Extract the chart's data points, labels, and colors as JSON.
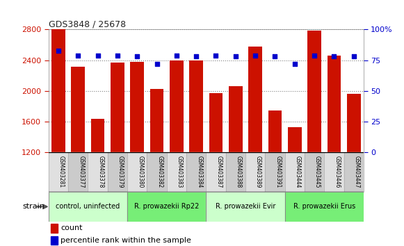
{
  "title": "GDS3848 / 25678",
  "samples": [
    "GSM403281",
    "GSM403377",
    "GSM403378",
    "GSM403379",
    "GSM403380",
    "GSM403382",
    "GSM403383",
    "GSM403384",
    "GSM403387",
    "GSM403388",
    "GSM403389",
    "GSM403391",
    "GSM403444",
    "GSM403445",
    "GSM403446",
    "GSM403447"
  ],
  "counts": [
    2800,
    2320,
    1640,
    2370,
    2380,
    2030,
    2400,
    2400,
    1970,
    2060,
    2580,
    1750,
    1530,
    2790,
    2460,
    1960
  ],
  "percentiles": [
    83,
    79,
    79,
    79,
    78,
    72,
    79,
    78,
    79,
    78,
    79,
    78,
    72,
    79,
    78,
    78
  ],
  "groups": [
    {
      "label": "control, uninfected",
      "start": 0,
      "end": 4,
      "color": "#ccffcc"
    },
    {
      "label": "R. prowazekii Rp22",
      "start": 4,
      "end": 8,
      "color": "#77ee77"
    },
    {
      "label": "R. prowazekii Evir",
      "start": 8,
      "end": 12,
      "color": "#ccffcc"
    },
    {
      "label": "R. prowazekii Erus",
      "start": 12,
      "end": 16,
      "color": "#77ee77"
    }
  ],
  "ylim_left": [
    1200,
    2800
  ],
  "ylim_right": [
    0,
    100
  ],
  "bar_color": "#cc1100",
  "dot_color": "#0000cc",
  "grid_color": "#808080",
  "bg_color": "#ffffff",
  "title_color": "#333333",
  "left_tick_color": "#cc1100",
  "right_tick_color": "#0000cc",
  "left_ticks": [
    1200,
    1600,
    2000,
    2400,
    2800
  ],
  "right_ticks": [
    0,
    25,
    50,
    75,
    100
  ]
}
